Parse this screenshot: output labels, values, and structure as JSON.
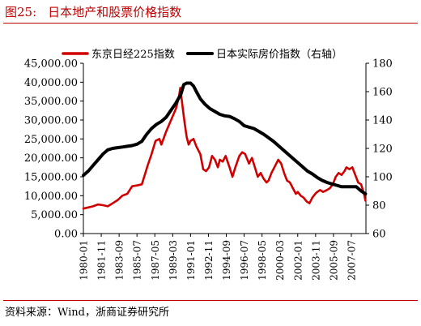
{
  "figure": {
    "number": "图25:",
    "title": "日本地产和股票价格指数"
  },
  "source": "资料来源：Wind，浙商证券研究所",
  "chart_data": {
    "type": "line",
    "legend_position": "top",
    "grid": false,
    "x_tick_labels": [
      "1980-01",
      "1981-11",
      "1983-09",
      "1985-07",
      "1987-05",
      "1989-03",
      "1991-01",
      "1992-11",
      "1994-09",
      "1996-07",
      "1998-05",
      "2000-03",
      "2002-01",
      "2003-11",
      "2005-09",
      "2007-07"
    ],
    "x_range": [
      1980.0,
      2009.0
    ],
    "left_axis": {
      "min": 0,
      "max": 45000,
      "step": 5000,
      "tick_labels": [
        "0.00",
        "5,000.00",
        "10,000.00",
        "15,000.00",
        "20,000.00",
        "25,000.00",
        "30,000.00",
        "35,000.00",
        "40,000.00",
        "45,000.00"
      ]
    },
    "right_axis": {
      "min": 60,
      "max": 180,
      "step": 20,
      "tick_labels": [
        "60",
        "80",
        "100",
        "120",
        "140",
        "160",
        "180"
      ]
    },
    "series": [
      {
        "name": "东京日经225指数",
        "axis": "left",
        "color": "#d00000",
        "x": [
          1980.0,
          1980.5,
          1981.0,
          1981.5,
          1982.0,
          1982.5,
          1983.0,
          1983.5,
          1984.0,
          1984.5,
          1985.0,
          1985.5,
          1986.0,
          1986.3,
          1986.6,
          1987.0,
          1987.4,
          1987.8,
          1988.0,
          1988.5,
          1989.0,
          1989.5,
          1989.8,
          1989.95,
          1990.2,
          1990.4,
          1990.6,
          1990.8,
          1991.0,
          1991.3,
          1991.6,
          1992.0,
          1992.3,
          1992.6,
          1992.9,
          1993.2,
          1993.5,
          1993.8,
          1994.0,
          1994.3,
          1994.6,
          1995.0,
          1995.3,
          1995.6,
          1996.0,
          1996.3,
          1996.6,
          1997.0,
          1997.3,
          1997.6,
          1997.9,
          1998.2,
          1998.5,
          1998.8,
          1999.0,
          1999.3,
          1999.6,
          2000.0,
          2000.3,
          2000.6,
          2000.9,
          2001.2,
          2001.5,
          2001.8,
          2002.0,
          2002.3,
          2002.6,
          2002.9,
          2003.2,
          2003.5,
          2003.8,
          2004.0,
          2004.3,
          2004.6,
          2005.0,
          2005.3,
          2005.6,
          2005.9,
          2006.2,
          2006.5,
          2006.8,
          2007.0,
          2007.3,
          2007.6,
          2007.9,
          2008.2,
          2008.5,
          2008.8,
          2008.95
        ],
        "values": [
          6600,
          6900,
          7200,
          7700,
          7500,
          7200,
          8000,
          8800,
          10000,
          10500,
          12500,
          12700,
          13000,
          15500,
          18000,
          21000,
          24500,
          25000,
          23500,
          27000,
          30000,
          33000,
          36000,
          38500,
          33000,
          29000,
          25500,
          23500,
          24500,
          25000,
          23000,
          21000,
          17000,
          16500,
          17500,
          20500,
          19500,
          17500,
          19500,
          19000,
          20500,
          17500,
          15000,
          17500,
          20500,
          21500,
          21000,
          18500,
          20000,
          17500,
          15000,
          16000,
          14500,
          13500,
          14000,
          16000,
          17500,
          19500,
          18500,
          16000,
          14000,
          13500,
          12000,
          10500,
          11000,
          10000,
          9500,
          8500,
          8000,
          9500,
          10500,
          11000,
          11500,
          11000,
          11500,
          12000,
          13000,
          15000,
          16000,
          15500,
          16500,
          17500,
          17000,
          17500,
          15500,
          13500,
          13000,
          10500,
          8700
        ]
      },
      {
        "name": "日本实际房价指数（右轴）",
        "axis": "right",
        "color": "#000000",
        "x": [
          1980.0,
          1980.5,
          1981.0,
          1981.5,
          1982.0,
          1982.5,
          1983.0,
          1983.5,
          1984.0,
          1984.5,
          1985.0,
          1985.5,
          1986.0,
          1986.5,
          1987.0,
          1987.5,
          1988.0,
          1988.5,
          1989.0,
          1989.5,
          1990.0,
          1990.3,
          1990.6,
          1991.0,
          1991.3,
          1991.6,
          1992.0,
          1992.5,
          1993.0,
          1993.5,
          1994.0,
          1994.5,
          1995.0,
          1995.5,
          1996.0,
          1996.5,
          1997.0,
          1997.5,
          1998.0,
          1998.5,
          1999.0,
          1999.5,
          2000.0,
          2000.5,
          2001.0,
          2001.5,
          2002.0,
          2002.5,
          2003.0,
          2003.5,
          2004.0,
          2004.5,
          2005.0,
          2005.5,
          2006.0,
          2006.5,
          2007.0,
          2007.5,
          2008.0,
          2008.5,
          2008.95
        ],
        "values": [
          101,
          104,
          108,
          112,
          116,
          119,
          120,
          120.5,
          121,
          121.5,
          122,
          123,
          125,
          130,
          134,
          137,
          139,
          142,
          147,
          152,
          158,
          165,
          166,
          166,
          164,
          160,
          155,
          151,
          148,
          146,
          144,
          143,
          142.5,
          141,
          139,
          136,
          135,
          134,
          132,
          130,
          127.5,
          125,
          122,
          119,
          116,
          113,
          110,
          107,
          104,
          102,
          99.5,
          97.5,
          96,
          95,
          94,
          93,
          93,
          93,
          93,
          90,
          88
        ]
      }
    ]
  }
}
